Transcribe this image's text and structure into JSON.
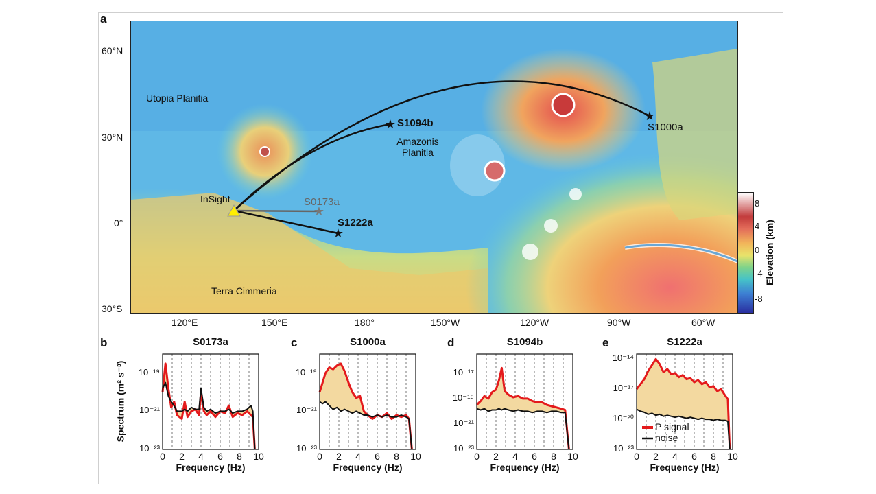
{
  "panel_a": {
    "label": "a",
    "lat_ticks": [
      "60°N",
      "30°N",
      "0°",
      "30°S"
    ],
    "lon_ticks": [
      "120°E",
      "150°E",
      "180°",
      "150°W",
      "120°W",
      "90°W",
      "60°W"
    ],
    "regions": [
      "Utopia Planitia",
      "Amazonis Planitia",
      "Terra Cimmeria"
    ],
    "stations": [
      "InSight"
    ],
    "events": [
      "S1094b",
      "S0173a",
      "S1222a",
      "S1000a"
    ],
    "colorbar": {
      "label": "Elevation (km)",
      "ticks": [
        "8",
        "4",
        "0",
        "-4",
        "-8"
      ]
    }
  },
  "colors": {
    "signal": "#e41a1c",
    "noise": "#111111",
    "fill": "#f3d9a0",
    "star": "#111111",
    "star_faded": "#777777",
    "station": "#ffee00"
  },
  "chart_data": [
    {
      "type": "line",
      "label": "b",
      "title": "S0173a",
      "xlabel": "Frequency (Hz)",
      "ylabel": "Spectrum (m² s⁻³)",
      "xlim": [
        0,
        10
      ],
      "ylim_exp": [
        -23,
        -18
      ],
      "xticks": [
        "0",
        "2",
        "4",
        "6",
        "8",
        "10"
      ],
      "yticks": [
        "10⁻¹⁹",
        "10⁻²¹",
        "10⁻²³"
      ],
      "ytick_exps": [
        -19,
        -21,
        -23
      ],
      "x": [
        0,
        0.3,
        0.6,
        0.9,
        1.2,
        1.5,
        2,
        2.3,
        2.6,
        3,
        3.4,
        3.8,
        4,
        4.3,
        4.6,
        5,
        5.5,
        6,
        6.5,
        6.9,
        7.3,
        7.8,
        8.3,
        8.8,
        9.2,
        9.4,
        9.6
      ],
      "series": [
        {
          "name": "P signal",
          "values": [
            -20.0,
            -18.5,
            -19.8,
            -20.8,
            -20.5,
            -21.2,
            -21.4,
            -20.5,
            -21.3,
            -21.0,
            -20.9,
            -21.2,
            -20.0,
            -21.0,
            -21.2,
            -21.0,
            -21.3,
            -21.0,
            -21.1,
            -20.7,
            -21.3,
            -21.1,
            -21.2,
            -21.0,
            -21.2,
            -21.3,
            -23.0
          ]
        },
        {
          "name": "noise",
          "values": [
            -19.8,
            -19.5,
            -20.2,
            -20.5,
            -20.7,
            -21.0,
            -21.0,
            -20.9,
            -21.0,
            -20.8,
            -20.9,
            -20.9,
            -19.8,
            -20.8,
            -21.0,
            -20.9,
            -21.1,
            -21.0,
            -21.0,
            -20.9,
            -21.1,
            -21.0,
            -21.0,
            -20.9,
            -20.7,
            -21.0,
            -23.0
          ]
        }
      ]
    },
    {
      "type": "line",
      "label": "c",
      "title": "S1000a",
      "xlabel": "Frequency (Hz)",
      "xlim": [
        0,
        10
      ],
      "ylim_exp": [
        -23,
        -18
      ],
      "xticks": [
        "0",
        "2",
        "4",
        "6",
        "8",
        "10"
      ],
      "yticks": [
        "10⁻¹⁹",
        "10⁻²¹",
        "10⁻²³"
      ],
      "ytick_exps": [
        -19,
        -21,
        -23
      ],
      "x": [
        0,
        0.3,
        0.6,
        1,
        1.4,
        1.8,
        2.2,
        2.6,
        3,
        3.4,
        3.8,
        4.2,
        4.6,
        5,
        5.5,
        6,
        6.5,
        7,
        7.5,
        8,
        8.5,
        9,
        9.3,
        9.6
      ],
      "series": [
        {
          "name": "P signal",
          "values": [
            -20.0,
            -19.5,
            -19.0,
            -18.7,
            -18.8,
            -18.6,
            -18.5,
            -18.9,
            -19.5,
            -20.0,
            -20.3,
            -20.2,
            -21.0,
            -21.2,
            -21.4,
            -21.2,
            -21.3,
            -21.1,
            -21.4,
            -21.2,
            -21.3,
            -21.2,
            -21.4,
            -23.0
          ]
        },
        {
          "name": "noise",
          "values": [
            -20.5,
            -20.6,
            -20.5,
            -20.7,
            -20.9,
            -20.8,
            -21.0,
            -20.9,
            -21.0,
            -21.1,
            -21.0,
            -21.1,
            -21.2,
            -21.2,
            -21.3,
            -21.2,
            -21.3,
            -21.2,
            -21.3,
            -21.3,
            -21.2,
            -21.3,
            -21.4,
            -23.0
          ]
        }
      ]
    },
    {
      "type": "line",
      "label": "d",
      "title": "S1094b",
      "xlabel": "Frequency (Hz)",
      "xlim": [
        0,
        10
      ],
      "ylim_exp": [
        -23,
        -15.5
      ],
      "xticks": [
        "0",
        "2",
        "4",
        "6",
        "8",
        "10"
      ],
      "yticks": [
        "10⁻¹⁷",
        "10⁻¹⁹",
        "10⁻²¹",
        "10⁻²³"
      ],
      "ytick_exps": [
        -17,
        -19,
        -21,
        -23
      ],
      "x": [
        0,
        0.4,
        0.8,
        1.2,
        1.6,
        2,
        2.3,
        2.6,
        2.9,
        3.3,
        3.8,
        4.3,
        4.8,
        5.3,
        5.8,
        6.3,
        6.8,
        7.3,
        7.8,
        8.3,
        8.8,
        9.2,
        9.6
      ],
      "series": [
        {
          "name": "P signal",
          "values": [
            -19.5,
            -19.2,
            -18.8,
            -19.0,
            -18.5,
            -18.3,
            -17.6,
            -16.6,
            -18.4,
            -18.7,
            -18.9,
            -18.8,
            -19.0,
            -19.0,
            -19.2,
            -19.3,
            -19.3,
            -19.5,
            -19.6,
            -19.7,
            -19.8,
            -19.9,
            -23.0
          ]
        },
        {
          "name": "noise",
          "values": [
            -19.8,
            -19.9,
            -19.8,
            -20.0,
            -19.9,
            -19.9,
            -19.8,
            -19.9,
            -19.8,
            -19.9,
            -20.0,
            -19.9,
            -20.0,
            -20.0,
            -20.1,
            -20.0,
            -20.0,
            -20.1,
            -20.0,
            -20.0,
            -20.1,
            -20.1,
            -23.0
          ]
        }
      ]
    },
    {
      "type": "line",
      "label": "e",
      "title": "S1222a",
      "xlabel": "Frequency (Hz)",
      "xlim": [
        0,
        10
      ],
      "ylim_exp": [
        -23,
        -13.5
      ],
      "xticks": [
        "0",
        "2",
        "4",
        "6",
        "8",
        "10"
      ],
      "yticks": [
        "10⁻¹⁴",
        "10⁻¹⁷",
        "10⁻²⁰",
        "10⁻²³"
      ],
      "ytick_exps": [
        -14,
        -17,
        -20,
        -23
      ],
      "x": [
        0,
        0.4,
        0.8,
        1.2,
        1.6,
        2,
        2.4,
        2.8,
        3.2,
        3.6,
        4,
        4.4,
        4.8,
        5.2,
        5.6,
        6,
        6.4,
        6.8,
        7.2,
        7.6,
        8,
        8.4,
        8.8,
        9.2,
        9.5,
        9.7
      ],
      "series": [
        {
          "name": "P signal",
          "values": [
            -17.0,
            -16.5,
            -16.0,
            -15.2,
            -14.6,
            -14.0,
            -14.5,
            -15.3,
            -15.0,
            -15.5,
            -15.4,
            -15.8,
            -15.6,
            -16.0,
            -15.9,
            -16.3,
            -16.1,
            -16.5,
            -16.3,
            -16.8,
            -16.7,
            -17.2,
            -17.0,
            -17.6,
            -18.0,
            -23.0
          ]
        },
        {
          "name": "noise",
          "values": [
            -19.0,
            -19.2,
            -19.3,
            -19.5,
            -19.4,
            -19.6,
            -19.5,
            -19.7,
            -19.6,
            -19.7,
            -19.8,
            -19.7,
            -19.8,
            -19.9,
            -19.8,
            -19.9,
            -20.0,
            -19.9,
            -20.0,
            -20.0,
            -20.1,
            -20.0,
            -20.1,
            -20.1,
            -20.2,
            -23.0
          ]
        }
      ],
      "legend": [
        "P signal",
        "noise"
      ]
    }
  ]
}
